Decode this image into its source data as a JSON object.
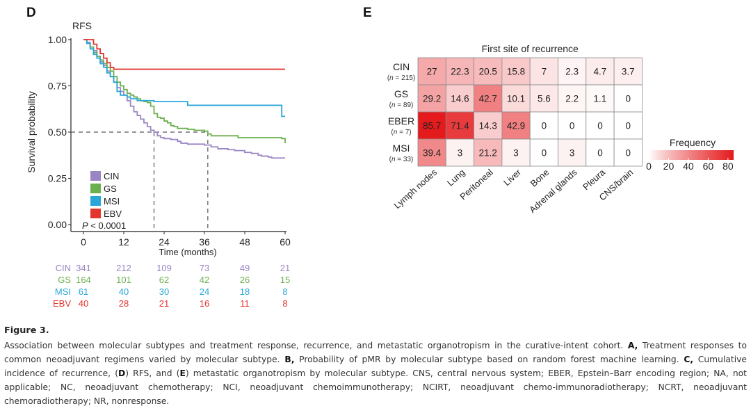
{
  "panels": {
    "d_label": "D",
    "e_label": "E"
  },
  "chart_data": [
    {
      "type": "line",
      "subtype": "kaplan-meier",
      "title": "RFS",
      "xlabel": "Time (months)",
      "ylabel": "Survival probability",
      "xlim": [
        0,
        60
      ],
      "ylim": [
        0,
        1
      ],
      "x_ticks": [
        "0",
        "12",
        "24",
        "36",
        "48",
        "60"
      ],
      "y_ticks": [
        "0.00",
        "0.25",
        "0.50",
        "0.75",
        "1.00"
      ],
      "annotation": "P < 0.0001",
      "median_reference": {
        "y": 0.5,
        "x_marks": [
          21,
          37
        ]
      },
      "legend": {
        "position": "bottom-left",
        "entries": [
          "CIN",
          "GS",
          "MSI",
          "EBV"
        ]
      },
      "series": [
        {
          "name": "CIN",
          "color": "#9a85c4",
          "points": [
            [
              0,
              1.0
            ],
            [
              1,
              0.985
            ],
            [
              2,
              0.96
            ],
            [
              3,
              0.94
            ],
            [
              4,
              0.91
            ],
            [
              5,
              0.88
            ],
            [
              6,
              0.86
            ],
            [
              7,
              0.83
            ],
            [
              8,
              0.8
            ],
            [
              9,
              0.77
            ],
            [
              10,
              0.74
            ],
            [
              11,
              0.72
            ],
            [
              12,
              0.7
            ],
            [
              13,
              0.67
            ],
            [
              14,
              0.64
            ],
            [
              15,
              0.61
            ],
            [
              16,
              0.59
            ],
            [
              17,
              0.57
            ],
            [
              18,
              0.55
            ],
            [
              19,
              0.53
            ],
            [
              20,
              0.51
            ],
            [
              21,
              0.5
            ],
            [
              22,
              0.48
            ],
            [
              23,
              0.47
            ],
            [
              24,
              0.465
            ],
            [
              26,
              0.46
            ],
            [
              28,
              0.45
            ],
            [
              29,
              0.44
            ],
            [
              31,
              0.435
            ],
            [
              36,
              0.43
            ],
            [
              38,
              0.42
            ],
            [
              40,
              0.41
            ],
            [
              43,
              0.405
            ],
            [
              45,
              0.4
            ],
            [
              48,
              0.39
            ],
            [
              50,
              0.385
            ],
            [
              52,
              0.375
            ],
            [
              53,
              0.37
            ],
            [
              55,
              0.365
            ],
            [
              56,
              0.36
            ],
            [
              60,
              0.36
            ]
          ]
        },
        {
          "name": "GS",
          "color": "#6ab04c",
          "points": [
            [
              0,
              1.0
            ],
            [
              1,
              0.98
            ],
            [
              2,
              0.96
            ],
            [
              3,
              0.93
            ],
            [
              4,
              0.91
            ],
            [
              5,
              0.89
            ],
            [
              6,
              0.87
            ],
            [
              7,
              0.85
            ],
            [
              8,
              0.83
            ],
            [
              9,
              0.8
            ],
            [
              10,
              0.77
            ],
            [
              11,
              0.75
            ],
            [
              12,
              0.73
            ],
            [
              13,
              0.71
            ],
            [
              14,
              0.7
            ],
            [
              15,
              0.69
            ],
            [
              16,
              0.68
            ],
            [
              17,
              0.67
            ],
            [
              18,
              0.665
            ],
            [
              19,
              0.66
            ],
            [
              20,
              0.64
            ],
            [
              21,
              0.6
            ],
            [
              22,
              0.58
            ],
            [
              23,
              0.575
            ],
            [
              24,
              0.56
            ],
            [
              25,
              0.55
            ],
            [
              26,
              0.535
            ],
            [
              27,
              0.53
            ],
            [
              28,
              0.52
            ],
            [
              31,
              0.515
            ],
            [
              33,
              0.51
            ],
            [
              36,
              0.505
            ],
            [
              37,
              0.49
            ],
            [
              38,
              0.48
            ],
            [
              46,
              0.47
            ],
            [
              59,
              0.465
            ],
            [
              60,
              0.44
            ]
          ]
        },
        {
          "name": "MSI",
          "color": "#2aa6d8",
          "points": [
            [
              0,
              1.0
            ],
            [
              1,
              0.98
            ],
            [
              2,
              0.95
            ],
            [
              3,
              0.92
            ],
            [
              4,
              0.9
            ],
            [
              5,
              0.87
            ],
            [
              6,
              0.85
            ],
            [
              7,
              0.82
            ],
            [
              8,
              0.8
            ],
            [
              9,
              0.77
            ],
            [
              10,
              0.72
            ],
            [
              11,
              0.7
            ],
            [
              12,
              0.7
            ],
            [
              13,
              0.69
            ],
            [
              14,
              0.68
            ],
            [
              16,
              0.67
            ],
            [
              20,
              0.67
            ],
            [
              21,
              0.665
            ],
            [
              30,
              0.665
            ],
            [
              31,
              0.645
            ],
            [
              58,
              0.645
            ],
            [
              59,
              0.585
            ],
            [
              60,
              0.585
            ]
          ]
        },
        {
          "name": "EBV",
          "color": "#e2352c",
          "points": [
            [
              0,
              1.0
            ],
            [
              2,
              1.0
            ],
            [
              3,
              0.975
            ],
            [
              4,
              0.95
            ],
            [
              5,
              0.925
            ],
            [
              6,
              0.9
            ],
            [
              7,
              0.875
            ],
            [
              8,
              0.85
            ],
            [
              9,
              0.84
            ],
            [
              60,
              0.84
            ]
          ]
        }
      ],
      "risk_table": {
        "times": [
          "0",
          "12",
          "24",
          "36",
          "48",
          "60"
        ],
        "rows": [
          {
            "name": "CIN",
            "color": "#9a85c4",
            "values": [
              "341",
              "212",
              "109",
              "73",
              "49",
              "21"
            ]
          },
          {
            "name": "GS",
            "color": "#6ab04c",
            "values": [
              "164",
              "101",
              "62",
              "42",
              "26",
              "15"
            ]
          },
          {
            "name": "MSI",
            "color": "#2aa6d8",
            "values": [
              "61",
              "40",
              "30",
              "24",
              "18",
              "8"
            ]
          },
          {
            "name": "EBV",
            "color": "#e2352c",
            "values": [
              "40",
              "28",
              "21",
              "16",
              "11",
              "8"
            ]
          }
        ]
      }
    },
    {
      "type": "heatmap",
      "title": "First site of recurrence",
      "rows": [
        {
          "name": "CIN",
          "n": "(n = 215)"
        },
        {
          "name": "GS",
          "n": "(n = 89)"
        },
        {
          "name": "EBER",
          "n": "(n = 7)"
        },
        {
          "name": "MSI",
          "n": "(n = 33)"
        }
      ],
      "columns": [
        "Lymph nodes",
        "Lung",
        "Peritoneal",
        "Liver",
        "Bone",
        "Adrenal glands",
        "Pleura",
        "CNS/brain"
      ],
      "values": [
        [
          "27",
          "22.3",
          "20.5",
          "15.8",
          "7",
          "2.3",
          "4.7",
          "3.7"
        ],
        [
          "29.2",
          "14.6",
          "42.7",
          "10.1",
          "5.6",
          "2.2",
          "1.1",
          "0"
        ],
        [
          "85.7",
          "71.4",
          "14.3",
          "42.9",
          "0",
          "0",
          "0",
          "0"
        ],
        [
          "39.4",
          "3",
          "21.2",
          "3",
          "0",
          "3",
          "0",
          "0"
        ]
      ],
      "colorbar": {
        "title": "Frequency",
        "ticks": [
          "0",
          "20",
          "40",
          "60",
          "80"
        ],
        "range": [
          0,
          85.7
        ],
        "low_color": "#ffffff",
        "high_color": "#e41a1c"
      }
    }
  ],
  "caption": {
    "title": "Figure 3.",
    "segments": [
      {
        "t": "Association between molecular subtypes and treatment response, recurrence, and metastatic organotropism in the curative-intent cohort. ",
        "b": false
      },
      {
        "t": "A,",
        "b": true
      },
      {
        "t": " Treatment responses to common neoadjuvant regimens varied by molecular subtype. ",
        "b": false
      },
      {
        "t": "B,",
        "b": true
      },
      {
        "t": " Probability of pMR by molecular subtype based on random forest machine learning. ",
        "b": false
      },
      {
        "t": "C,",
        "b": true
      },
      {
        "t": " Cumulative incidence of recurrence, (",
        "b": false
      },
      {
        "t": "D",
        "b": true
      },
      {
        "t": ") RFS, and (",
        "b": false
      },
      {
        "t": "E",
        "b": true
      },
      {
        "t": ") metastatic organotropism by molecular subtype. CNS, central nervous system; EBER, Epstein–Barr encoding region; NA, not applicable; NC, neoadjuvant chemotherapy; NCI, neoadjuvant chemoimmunotherapy; NCIRT, neoadjuvant chemo-immunoradiotherapy; NCRT, neoadjuvant chemoradiotherapy; NR, nonresponse.",
        "b": false
      }
    ]
  }
}
